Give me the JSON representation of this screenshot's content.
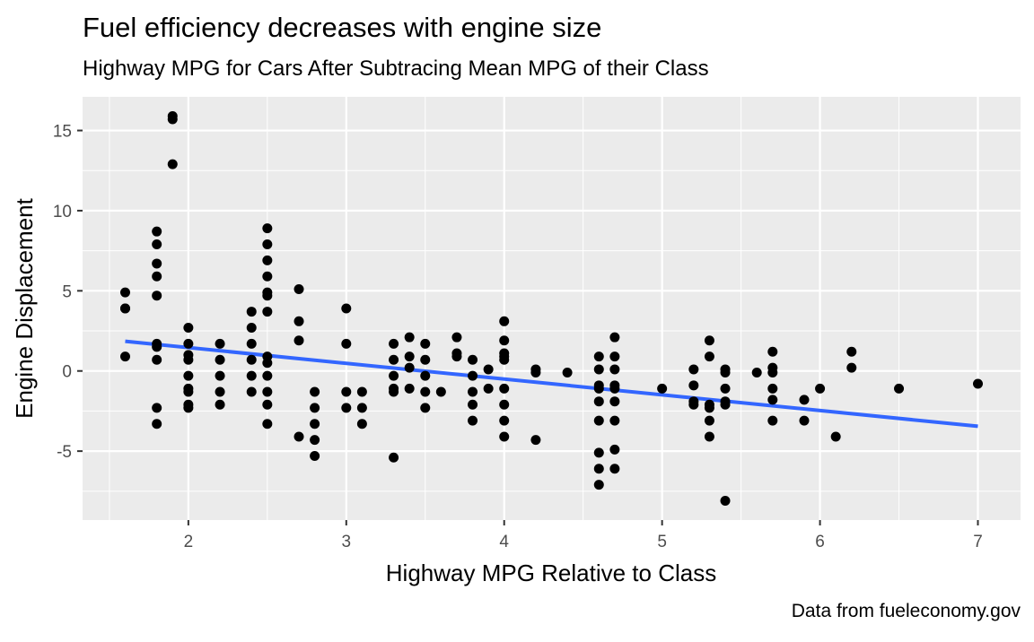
{
  "chart_data": {
    "type": "scatter",
    "title": "Fuel efficiency decreases with engine size",
    "subtitle": "Highway MPG for Cars After Subtracing Mean MPG of their Class",
    "xlabel": "Highway MPG Relative to Class",
    "ylabel": "Engine Displacement",
    "caption": "Data from fueleconomy.gov",
    "xlim": [
      1.33,
      7.27
    ],
    "ylim": [
      -9.3,
      17.1
    ],
    "x_ticks": [
      2,
      3,
      4,
      5,
      6,
      7
    ],
    "y_ticks": [
      -5,
      0,
      5,
      10,
      15
    ],
    "x_tick_labels": [
      "2",
      "3",
      "4",
      "5",
      "6",
      "7"
    ],
    "y_tick_labels": [
      "-5",
      "0",
      "5",
      "10",
      "15"
    ],
    "grid": true,
    "point_color": "#000000",
    "trend_color": "#3366FF",
    "panel_color": "#EBEBEB",
    "trend_line": {
      "x": [
        1.6,
        7.0
      ],
      "y": [
        1.85,
        -3.45
      ]
    },
    "points": [
      [
        1.6,
        4.9
      ],
      [
        1.6,
        3.9
      ],
      [
        1.6,
        3.9
      ],
      [
        1.6,
        0.9
      ],
      [
        1.8,
        8.7
      ],
      [
        1.8,
        7.9
      ],
      [
        1.8,
        6.7
      ],
      [
        1.8,
        5.9
      ],
      [
        1.8,
        4.7
      ],
      [
        1.8,
        1.7
      ],
      [
        1.8,
        1.5
      ],
      [
        1.8,
        0.7
      ],
      [
        1.8,
        -2.3
      ],
      [
        1.8,
        -3.3
      ],
      [
        1.9,
        15.9
      ],
      [
        1.9,
        15.7
      ],
      [
        1.9,
        12.9
      ],
      [
        2.0,
        2.7
      ],
      [
        2.0,
        1.7
      ],
      [
        2.0,
        1.0
      ],
      [
        2.0,
        0.7
      ],
      [
        2.0,
        -0.3
      ],
      [
        2.0,
        -1.1
      ],
      [
        2.0,
        -1.3
      ],
      [
        2.0,
        -2.1
      ],
      [
        2.0,
        -2.3
      ],
      [
        2.2,
        1.7
      ],
      [
        2.2,
        0.7
      ],
      [
        2.2,
        -0.3
      ],
      [
        2.2,
        -1.3
      ],
      [
        2.2,
        -2.1
      ],
      [
        2.4,
        3.7
      ],
      [
        2.4,
        2.7
      ],
      [
        2.4,
        1.7
      ],
      [
        2.4,
        0.7
      ],
      [
        2.4,
        -0.3
      ],
      [
        2.4,
        -1.3
      ],
      [
        2.5,
        8.9
      ],
      [
        2.5,
        7.9
      ],
      [
        2.5,
        6.9
      ],
      [
        2.5,
        5.9
      ],
      [
        2.5,
        4.9
      ],
      [
        2.5,
        4.7
      ],
      [
        2.5,
        3.7
      ],
      [
        2.5,
        0.9
      ],
      [
        2.5,
        0.5
      ],
      [
        2.5,
        -0.3
      ],
      [
        2.5,
        -1.3
      ],
      [
        2.5,
        -2.1
      ],
      [
        2.5,
        -3.3
      ],
      [
        2.7,
        5.1
      ],
      [
        2.7,
        3.1
      ],
      [
        2.7,
        1.9
      ],
      [
        2.7,
        -4.1
      ],
      [
        2.8,
        -1.3
      ],
      [
        2.8,
        -2.3
      ],
      [
        2.8,
        -3.3
      ],
      [
        2.8,
        -4.3
      ],
      [
        2.8,
        -5.3
      ],
      [
        3.0,
        3.9
      ],
      [
        3.0,
        1.7
      ],
      [
        3.0,
        -1.3
      ],
      [
        3.0,
        -2.3
      ],
      [
        3.1,
        -1.3
      ],
      [
        3.1,
        -2.3
      ],
      [
        3.1,
        -3.3
      ],
      [
        3.3,
        1.7
      ],
      [
        3.3,
        0.7
      ],
      [
        3.3,
        -0.3
      ],
      [
        3.3,
        -1.1
      ],
      [
        3.3,
        -1.3
      ],
      [
        3.3,
        -5.4
      ],
      [
        3.4,
        2.1
      ],
      [
        3.4,
        0.9
      ],
      [
        3.4,
        0.2
      ],
      [
        3.4,
        -1.1
      ],
      [
        3.5,
        1.7
      ],
      [
        3.5,
        0.7
      ],
      [
        3.5,
        -0.3
      ],
      [
        3.5,
        -1.3
      ],
      [
        3.5,
        -2.3
      ],
      [
        3.6,
        -1.3
      ],
      [
        3.7,
        2.1
      ],
      [
        3.7,
        1.1
      ],
      [
        3.7,
        0.9
      ],
      [
        3.8,
        0.7
      ],
      [
        3.8,
        -0.3
      ],
      [
        3.8,
        -1.3
      ],
      [
        3.8,
        -2.1
      ],
      [
        3.8,
        -3.1
      ],
      [
        3.9,
        0.1
      ],
      [
        3.9,
        -1.1
      ],
      [
        4.0,
        3.1
      ],
      [
        4.0,
        1.9
      ],
      [
        4.0,
        1.1
      ],
      [
        4.0,
        0.9
      ],
      [
        4.0,
        0.7
      ],
      [
        4.0,
        -1.1
      ],
      [
        4.0,
        -2.1
      ],
      [
        4.0,
        -3.1
      ],
      [
        4.0,
        -4.1
      ],
      [
        4.2,
        0.1
      ],
      [
        4.2,
        -0.1
      ],
      [
        4.2,
        -4.3
      ],
      [
        4.4,
        -0.1
      ],
      [
        4.6,
        0.9
      ],
      [
        4.6,
        0.1
      ],
      [
        4.6,
        -0.9
      ],
      [
        4.6,
        -1.1
      ],
      [
        4.6,
        -1.9
      ],
      [
        4.6,
        -3.1
      ],
      [
        4.6,
        -5.1
      ],
      [
        4.6,
        -6.1
      ],
      [
        4.6,
        -7.1
      ],
      [
        4.7,
        2.1
      ],
      [
        4.7,
        0.9
      ],
      [
        4.7,
        0.1
      ],
      [
        4.7,
        -0.9
      ],
      [
        4.7,
        -1.1
      ],
      [
        4.7,
        -1.9
      ],
      [
        4.7,
        -3.1
      ],
      [
        4.7,
        -4.9
      ],
      [
        4.7,
        -6.1
      ],
      [
        5.0,
        -1.1
      ],
      [
        5.2,
        0.1
      ],
      [
        5.2,
        -0.9
      ],
      [
        5.2,
        -1.9
      ],
      [
        5.2,
        -2.1
      ],
      [
        5.3,
        1.9
      ],
      [
        5.3,
        0.9
      ],
      [
        5.3,
        -2.1
      ],
      [
        5.3,
        -2.3
      ],
      [
        5.3,
        -3.1
      ],
      [
        5.3,
        -4.1
      ],
      [
        5.4,
        0.1
      ],
      [
        5.4,
        -0.1
      ],
      [
        5.4,
        -1.1
      ],
      [
        5.4,
        -1.9
      ],
      [
        5.4,
        -2.1
      ],
      [
        5.4,
        -8.1
      ],
      [
        5.6,
        -0.1
      ],
      [
        5.7,
        1.2
      ],
      [
        5.7,
        0.2
      ],
      [
        5.7,
        -0.1
      ],
      [
        5.7,
        -1.1
      ],
      [
        5.7,
        -1.8
      ],
      [
        5.7,
        -3.1
      ],
      [
        5.9,
        -1.8
      ],
      [
        5.9,
        -3.1
      ],
      [
        6.0,
        -1.1
      ],
      [
        6.1,
        -4.1
      ],
      [
        6.2,
        1.2
      ],
      [
        6.2,
        0.2
      ],
      [
        6.5,
        -1.1
      ],
      [
        7.0,
        -0.8
      ]
    ]
  }
}
